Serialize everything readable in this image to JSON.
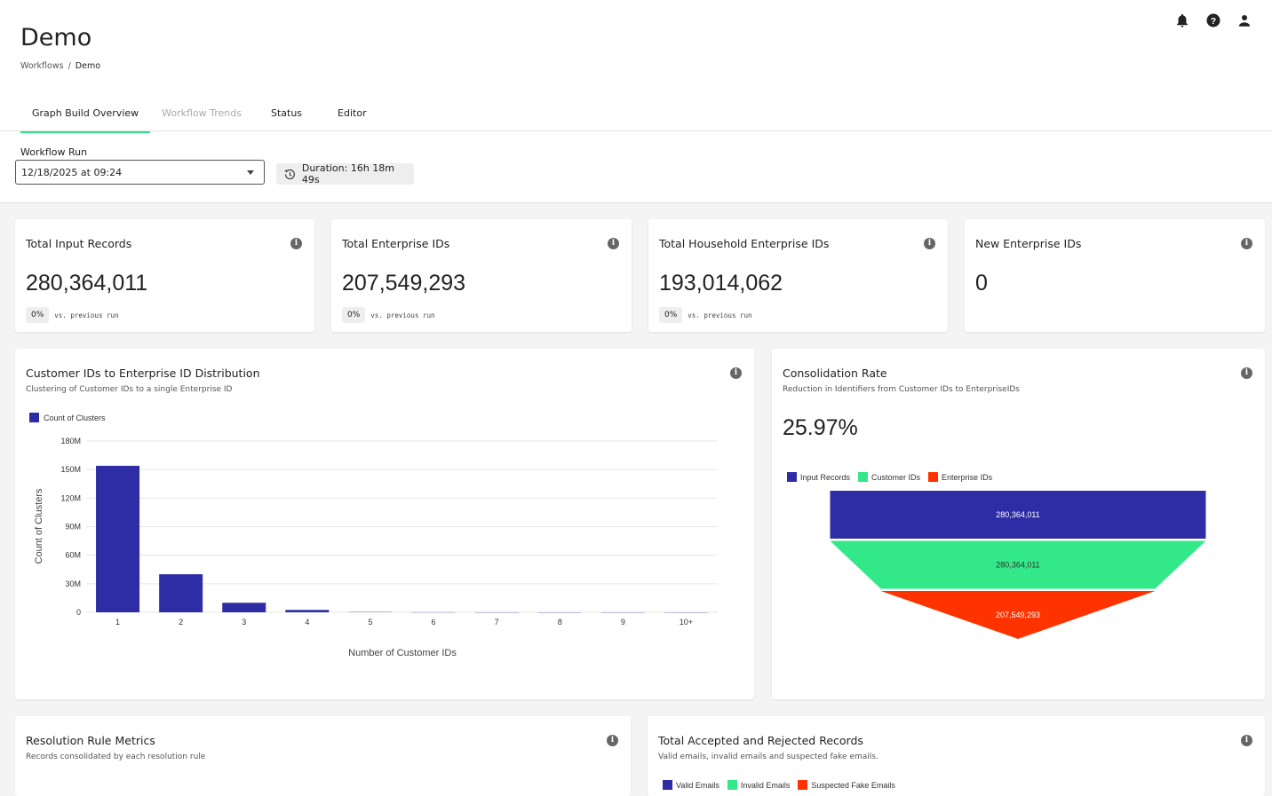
{
  "header": {
    "title": "Demo",
    "breadcrumb": [
      "Workflows",
      "/",
      "Demo"
    ],
    "icons": [
      "bell-icon",
      "help-icon",
      "user-icon"
    ]
  },
  "tabs": [
    {
      "label": "Graph Build Overview",
      "state": "active"
    },
    {
      "label": "Workflow Trends",
      "state": "disabled"
    },
    {
      "label": "Status",
      "state": "normal"
    },
    {
      "label": "Editor",
      "state": "normal"
    }
  ],
  "run": {
    "label": "Workflow Run",
    "value": "12/18/2025 at 09:24",
    "duration": "Duration: 16h 18m 49s"
  },
  "kpis": [
    {
      "title": "Total Input Records",
      "value": "280,364,011",
      "delta": "0%",
      "vs": "vs. previous run"
    },
    {
      "title": "Total Enterprise IDs",
      "value": "207,549,293",
      "delta": "0%",
      "vs": "vs. previous run"
    },
    {
      "title": "Total Household Enterprise IDs",
      "value": "193,014,062",
      "delta": "0%",
      "vs": "vs. previous run"
    },
    {
      "title": "New Enterprise IDs",
      "value": "0"
    }
  ],
  "distribution": {
    "title": "Customer IDs to Enterprise ID Distribution",
    "subtitle": "Clustering of Customer IDs to a single Enterprise ID"
  },
  "consolidation": {
    "title": "Consolidation Rate",
    "subtitle": "Reduction in Identifiers from Customer IDs to EnterpriseIDs",
    "rate": "25.97%"
  },
  "resolution": {
    "title": "Resolution Rule Metrics",
    "subtitle": "Records consolidated by each resolution rule"
  },
  "accepted": {
    "title": "Total Accepted and Rejected Records",
    "subtitle": "Valid emails, invalid emails and suspected fake emails.",
    "legend": [
      "Valid Emails",
      "Invalid Emails",
      "Suspected Fake Emails"
    ]
  },
  "chart_data": [
    {
      "type": "bar",
      "categories": [
        "1",
        "2",
        "3",
        "4",
        "5",
        "6",
        "7",
        "8",
        "9",
        "10+"
      ],
      "series": [
        {
          "name": "Count of Clusters",
          "values": [
            154000000,
            40000000,
            10000000,
            2500000,
            800000,
            300000,
            100000,
            50000,
            30000,
            20000
          ],
          "color": "#2e2da6"
        }
      ],
      "xlabel": "Number of Customer IDs",
      "ylabel": "Count of Clusters",
      "ylim": [
        0,
        180000000
      ],
      "yticks": [
        "0",
        "30M",
        "60M",
        "90M",
        "120M",
        "150M",
        "180M"
      ],
      "grid": true,
      "legend": "top-left"
    },
    {
      "type": "funnel",
      "categories": [
        "Input Records",
        "Customer IDs",
        "Enterprise IDs"
      ],
      "values": [
        280364011,
        280364011,
        207549293
      ],
      "labels": [
        "280,364,011",
        "280,364,011",
        "207,549,293"
      ],
      "colors": [
        "#2e2da6",
        "#33e888",
        "#ff3300"
      ],
      "legend": "top-left"
    }
  ]
}
